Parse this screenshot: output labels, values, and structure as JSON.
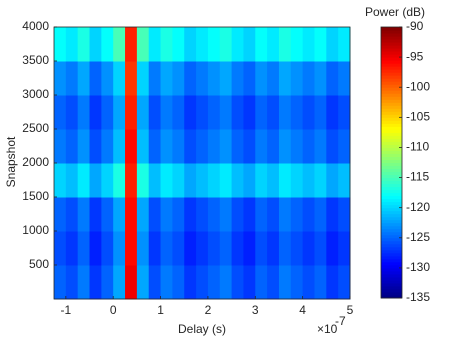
{
  "chart_data": {
    "type": "heatmap",
    "xlabel": "Delay (s)",
    "ylabel": "Snapshot",
    "colorbar_label": "Power (dB)",
    "x_multiplier": {
      "base": "×10",
      "exponent": "-7"
    },
    "colormap": "jet",
    "xlim": [
      -1.25,
      5
    ],
    "xticks": [
      -1,
      0,
      1,
      2,
      3,
      4,
      5
    ],
    "ylim": [
      0,
      4000
    ],
    "yticks": [
      500,
      1000,
      1500,
      2000,
      2500,
      3000,
      3500,
      4000
    ],
    "clim": [
      -135,
      -90
    ],
    "cticks": [
      -90,
      -95,
      -100,
      -105,
      -110,
      -115,
      -120,
      -125,
      -130,
      -135
    ],
    "xbins": [
      -1.25,
      -1,
      -0.75,
      -0.5,
      -0.25,
      0,
      0.25,
      0.5,
      0.75,
      1,
      1.25,
      1.5,
      1.75,
      2,
      2.25,
      2.5,
      2.75,
      3,
      3.25,
      3.5,
      3.75,
      4,
      4.25,
      4.5,
      4.75,
      5
    ],
    "ybins": [
      0,
      500,
      1000,
      1500,
      2000,
      2500,
      3000,
      3500,
      4000
    ],
    "z": [
      [
        -125,
        -126,
        -124,
        -127,
        -125,
        -122,
        -95,
        -122,
        -126,
        -124,
        -125,
        -127,
        -126,
        -125,
        -124,
        -126,
        -127,
        -125,
        -126,
        -124,
        -125,
        -126,
        -125,
        -127,
        -126
      ],
      [
        -126,
        -127,
        -125,
        -128,
        -126,
        -123,
        -96,
        -123,
        -127,
        -125,
        -126,
        -128,
        -127,
        -126,
        -125,
        -127,
        -128,
        -126,
        -127,
        -125,
        -126,
        -127,
        -126,
        -128,
        -127
      ],
      [
        -125,
        -126,
        -124,
        -127,
        -125,
        -122,
        -96,
        -122,
        -126,
        -124,
        -125,
        -127,
        -126,
        -125,
        -124,
        -126,
        -127,
        -125,
        -126,
        -124,
        -125,
        -126,
        -125,
        -127,
        -126
      ],
      [
        -120,
        -121,
        -119,
        -122,
        -120,
        -117,
        -97,
        -117,
        -121,
        -119,
        -120,
        -122,
        -121,
        -120,
        -119,
        -121,
        -122,
        -120,
        -121,
        -119,
        -120,
        -121,
        -120,
        -122,
        -121
      ],
      [
        -124,
        -125,
        -123,
        -126,
        -124,
        -121,
        -96,
        -121,
        -125,
        -123,
        -124,
        -126,
        -125,
        -124,
        -123,
        -125,
        -126,
        -124,
        -125,
        -123,
        -124,
        -125,
        -124,
        -126,
        -125
      ],
      [
        -125,
        -126,
        -124,
        -127,
        -125,
        -122,
        -97,
        -122,
        -126,
        -124,
        -125,
        -127,
        -126,
        -125,
        -124,
        -126,
        -127,
        -125,
        -126,
        -124,
        -125,
        -126,
        -125,
        -127,
        -126
      ],
      [
        -123,
        -124,
        -122,
        -125,
        -123,
        -120,
        -98,
        -120,
        -124,
        -122,
        -123,
        -125,
        -124,
        -123,
        -122,
        -124,
        -125,
        -123,
        -124,
        -122,
        -123,
        -124,
        -123,
        -125,
        -124
      ],
      [
        -118,
        -119,
        -117,
        -120,
        -118,
        -115,
        -97,
        -115,
        -119,
        -117,
        -118,
        -120,
        -119,
        -118,
        -117,
        -119,
        -120,
        -118,
        -119,
        -117,
        -118,
        -119,
        -118,
        -120,
        -119
      ]
    ]
  }
}
